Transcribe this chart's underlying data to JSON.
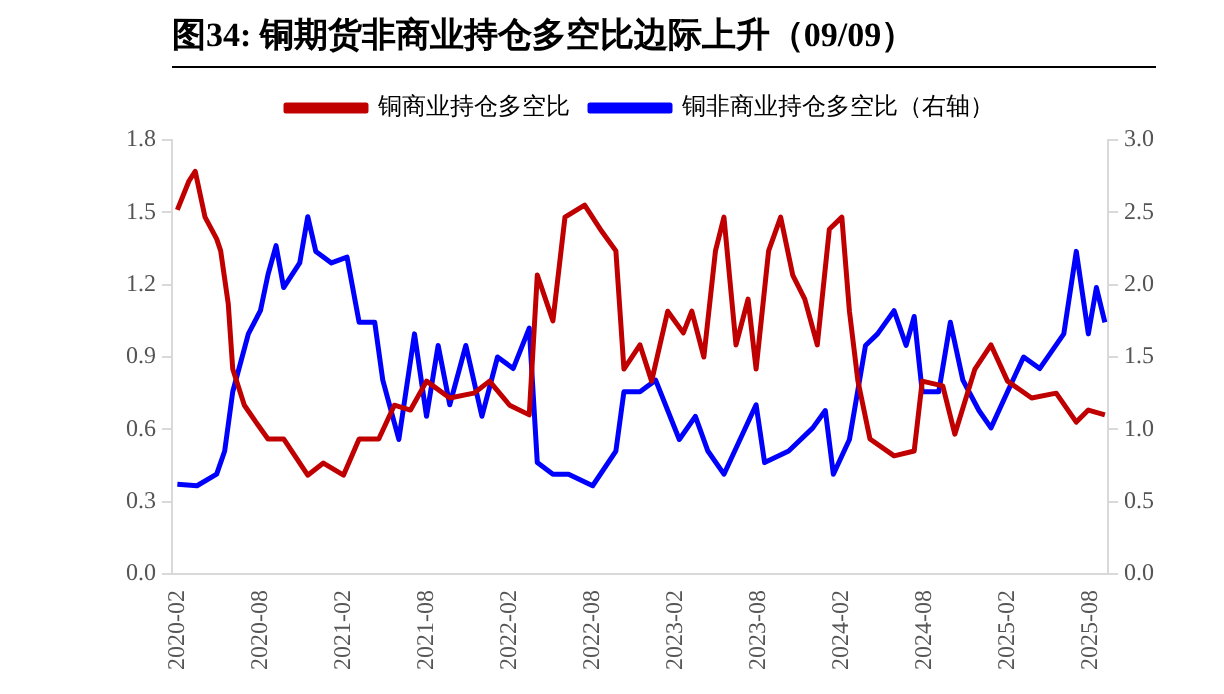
{
  "chart_data": {
    "type": "line",
    "title": "图34: 铜期货非商业持仓多空比边际上升（09/09）",
    "xlim": [
      "2020-01-20",
      "2025-09-08"
    ],
    "xticks": [
      "2020-02",
      "2020-08",
      "2021-02",
      "2021-08",
      "2022-02",
      "2022-08",
      "2023-02",
      "2023-08",
      "2024-02",
      "2024-08",
      "2025-02",
      "2025-08"
    ],
    "ylim": [
      0,
      1.8
    ],
    "yticks": [
      {
        "value": 0,
        "label": "0.0"
      },
      {
        "value": 0.3,
        "label": "0.3"
      },
      {
        "value": 0.6,
        "label": "0.6"
      },
      {
        "value": 0.9,
        "label": "0.9"
      },
      {
        "value": 1.2,
        "label": "1.2"
      },
      {
        "value": 1.5,
        "label": "1.5"
      },
      {
        "value": 1.8,
        "label": "1.8"
      }
    ],
    "y2lim": [
      0,
      3
    ],
    "y2ticks": [
      {
        "value": 0,
        "label": "0.0"
      },
      {
        "value": 0.5,
        "label": "0.5"
      },
      {
        "value": 1,
        "label": "1.0"
      },
      {
        "value": 1.5,
        "label": "1.5"
      },
      {
        "value": 2,
        "label": "2.0"
      },
      {
        "value": 2.5,
        "label": "2.5"
      },
      {
        "value": 3,
        "label": "3.0"
      }
    ],
    "grid": false,
    "legend": "top",
    "marker": "none",
    "line_style": "solid",
    "series": [
      {
        "name": "铜商业持仓多空比",
        "color": "#c00000",
        "x": [
          "2020-02-01",
          "2020-02-27",
          "2020-03-10",
          "2020-04-01",
          "2020-04-27",
          "2020-05-05",
          "2020-05-22",
          "2020-06-01",
          "2020-06-27",
          "2020-07-22",
          "2020-08-18",
          "2020-09-22",
          "2020-11-14",
          "2020-12-18",
          "2021-02-01",
          "2021-03-05",
          "2021-04-18",
          "2021-05-22",
          "2021-06-27",
          "2021-08-01",
          "2021-09-22",
          "2021-11-14",
          "2021-12-18",
          "2022-02-01",
          "2022-03-14",
          "2022-04-01",
          "2022-05-05",
          "2022-06-01",
          "2022-07-14",
          "2022-08-18",
          "2022-09-22",
          "2022-10-09",
          "2022-11-14",
          "2022-12-09",
          "2023-01-14",
          "2023-02-18",
          "2023-03-06",
          "2023-04-02",
          "2023-04-28",
          "2023-05-16",
          "2023-06-12",
          "2023-07-08",
          "2023-07-26",
          "2023-08-23",
          "2023-09-19",
          "2023-10-15",
          "2023-11-11",
          "2023-12-08",
          "2024-01-04",
          "2024-02-01",
          "2024-02-18",
          "2024-03-06",
          "2024-04-02",
          "2024-05-25",
          "2024-07-08",
          "2024-07-26",
          "2024-09-10",
          "2024-10-06",
          "2024-11-20",
          "2024-12-25",
          "2025-01-31",
          "2025-03-23",
          "2025-05-16",
          "2025-06-30",
          "2025-07-26",
          "2025-09-01"
        ],
        "values": [
          1.51,
          1.63,
          1.67,
          1.48,
          1.39,
          1.34,
          1.12,
          0.85,
          0.7,
          0.63,
          0.56,
          0.56,
          0.41,
          0.46,
          0.41,
          0.56,
          0.56,
          0.7,
          0.68,
          0.8,
          0.73,
          0.75,
          0.8,
          0.7,
          0.66,
          1.24,
          1.05,
          1.48,
          1.53,
          1.43,
          1.34,
          0.85,
          0.95,
          0.8,
          1.09,
          1.0,
          1.09,
          0.9,
          1.34,
          1.48,
          0.95,
          1.14,
          0.85,
          1.34,
          1.48,
          1.24,
          1.14,
          0.95,
          1.43,
          1.48,
          1.09,
          0.8,
          0.56,
          0.49,
          0.51,
          0.8,
          0.78,
          0.58,
          0.85,
          0.95,
          0.8,
          0.73,
          0.75,
          0.63,
          0.68,
          0.66
        ]
      },
      {
        "name": "铜非商业持仓多空比（右轴）",
        "color": "#0000ff",
        "axis": "y2",
        "x": [
          "2020-02-01",
          "2020-03-14",
          "2020-04-27",
          "2020-05-14",
          "2020-06-01",
          "2020-07-05",
          "2020-08-01",
          "2020-08-18",
          "2020-09-05",
          "2020-09-22",
          "2020-10-27",
          "2020-11-14",
          "2020-12-01",
          "2021-01-05",
          "2021-02-09",
          "2021-03-05",
          "2021-04-09",
          "2021-04-27",
          "2021-06-01",
          "2021-07-05",
          "2021-08-01",
          "2021-08-27",
          "2021-09-22",
          "2021-10-27",
          "2021-12-01",
          "2022-01-05",
          "2022-02-09",
          "2022-03-14",
          "2022-04-01",
          "2022-05-05",
          "2022-06-09",
          "2022-08-01",
          "2022-09-22",
          "2022-10-09",
          "2022-11-14",
          "2022-12-18",
          "2023-02-09",
          "2023-03-14",
          "2023-04-11",
          "2023-05-16",
          "2023-06-21",
          "2023-07-26",
          "2023-08-14",
          "2023-10-06",
          "2023-11-29",
          "2023-12-26",
          "2024-01-13",
          "2024-02-18",
          "2024-03-23",
          "2024-04-19",
          "2024-05-25",
          "2024-06-21",
          "2024-07-08",
          "2024-07-26",
          "2024-09-01",
          "2024-09-27",
          "2024-10-24",
          "2024-11-29",
          "2024-12-25",
          "2025-01-31",
          "2025-03-05",
          "2025-04-10",
          "2025-06-02",
          "2025-06-30",
          "2025-07-26",
          "2025-08-13",
          "2025-09-01"
        ],
        "values": [
          0.62,
          0.61,
          0.69,
          0.85,
          1.26,
          1.66,
          1.82,
          2.07,
          2.27,
          1.98,
          2.15,
          2.47,
          2.23,
          2.15,
          2.19,
          1.74,
          1.74,
          1.34,
          0.93,
          1.66,
          1.09,
          1.58,
          1.17,
          1.58,
          1.09,
          1.5,
          1.42,
          1.7,
          0.77,
          0.69,
          0.69,
          0.61,
          0.85,
          1.26,
          1.26,
          1.34,
          0.93,
          1.09,
          0.85,
          0.69,
          0.93,
          1.17,
          0.77,
          0.85,
          1.01,
          1.13,
          0.69,
          0.93,
          1.58,
          1.66,
          1.82,
          1.58,
          1.78,
          1.26,
          1.26,
          1.74,
          1.34,
          1.13,
          1.01,
          1.26,
          1.5,
          1.42,
          1.66,
          2.23,
          1.66,
          1.98,
          1.74
        ]
      }
    ]
  }
}
